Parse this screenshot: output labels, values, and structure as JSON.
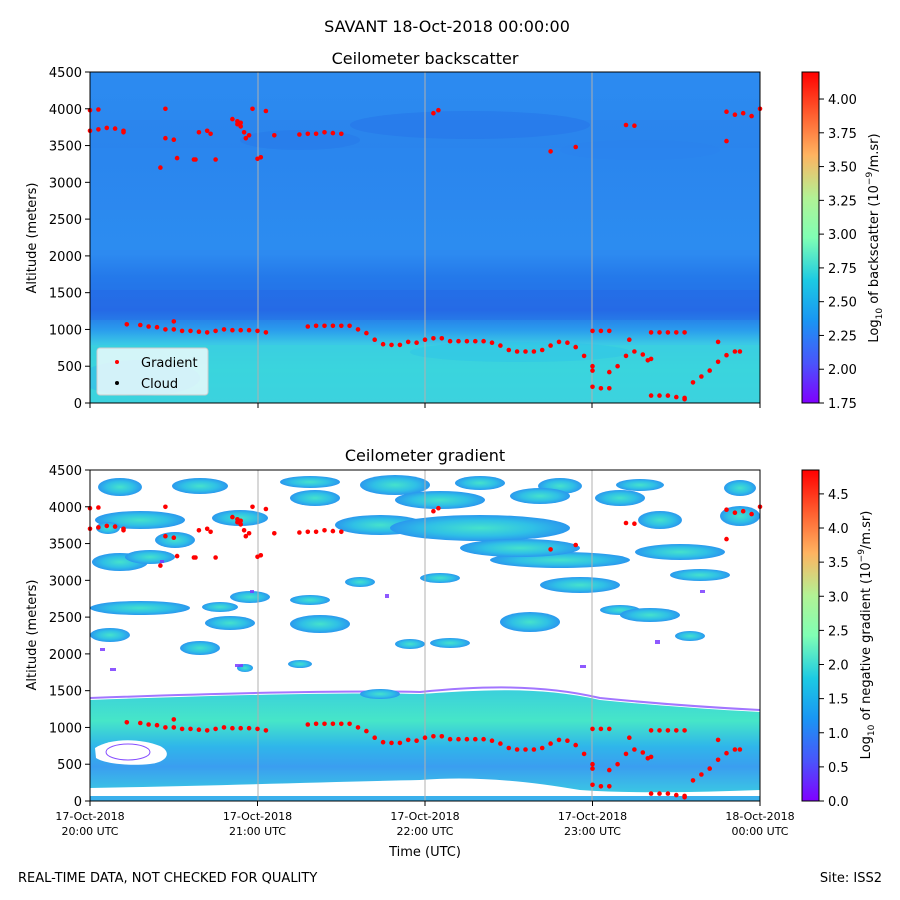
{
  "figure": {
    "suptitle": "SAVANT 18-Oct-2018 00:00:00",
    "footer_left": "REAL-TIME DATA, NOT CHECKED FOR QUALITY",
    "footer_right": "Site: ISS2"
  },
  "chart_data": [
    {
      "type": "heatmap",
      "title": "Ceilometer backscatter",
      "ylabel": "Altitude (meters)",
      "xlabel": "",
      "ylim": [
        0,
        4500
      ],
      "yticks": [
        "0",
        "500",
        "1000",
        "1500",
        "2000",
        "2500",
        "3000",
        "3500",
        "4000",
        "4500"
      ],
      "xlim_hours": [
        20,
        24
      ],
      "colorbar": {
        "label": "Log10 of backscatter (10^-9/m.sr)",
        "label_prefix": "Log",
        "label_sub": "10",
        "label_mid": " of backscatter (10",
        "label_sup": "−9",
        "label_suffix": "/m.sr)",
        "range": [
          1.75,
          4.2
        ],
        "ticks": [
          "1.75",
          "2.00",
          "2.25",
          "2.50",
          "2.75",
          "3.00",
          "3.25",
          "3.50",
          "3.75",
          "4.00"
        ]
      },
      "legend": {
        "position": "lower-left",
        "entries": [
          {
            "label": "Gradient",
            "color": "#ff0000"
          },
          {
            "label": "Cloud",
            "color": "#000000"
          }
        ]
      }
    },
    {
      "type": "heatmap",
      "title": "Ceilometer gradient",
      "ylabel": "Altitude (meters)",
      "xlabel": "Time (UTC)",
      "ylim": [
        0,
        4500
      ],
      "yticks": [
        "0",
        "500",
        "1000",
        "1500",
        "2000",
        "2500",
        "3000",
        "3500",
        "4000",
        "4500"
      ],
      "xlim_hours": [
        20,
        24
      ],
      "xticks": [
        {
          "date": "17-Oct-2018",
          "time": "20:00 UTC"
        },
        {
          "date": "17-Oct-2018",
          "time": "21:00 UTC"
        },
        {
          "date": "17-Oct-2018",
          "time": "22:00 UTC"
        },
        {
          "date": "17-Oct-2018",
          "time": "23:00 UTC"
        },
        {
          "date": "18-Oct-2018",
          "time": "00:00 UTC"
        }
      ],
      "colorbar": {
        "label": "Log10 of negative gradient (10^-9/m.sr)",
        "label_prefix": "Log",
        "label_sub": "10",
        "label_mid": " of negative gradient (10",
        "label_sup": "−9",
        "label_suffix": "/m.sr)",
        "range": [
          0,
          4.85
        ],
        "ticks": [
          "0.0",
          "0.5",
          "1.0",
          "1.5",
          "2.0",
          "2.5",
          "3.0",
          "3.5",
          "4.0",
          "4.5"
        ]
      }
    }
  ],
  "gradient_points": {
    "series_name": "Gradient",
    "color": "#ff0000",
    "points": [
      [
        20.0,
        3700
      ],
      [
        20.05,
        3720
      ],
      [
        20.1,
        3740
      ],
      [
        20.15,
        3730
      ],
      [
        20.2,
        3700
      ],
      [
        20.2,
        3680
      ],
      [
        20.0,
        3980
      ],
      [
        20.05,
        3990
      ],
      [
        20.45,
        3600
      ],
      [
        20.5,
        3580
      ],
      [
        20.42,
        3200
      ],
      [
        20.52,
        3330
      ],
      [
        20.62,
        3310
      ],
      [
        20.65,
        3680
      ],
      [
        20.7,
        3700
      ],
      [
        20.63,
        3310
      ],
      [
        20.72,
        3660
      ],
      [
        20.45,
        4000
      ],
      [
        20.75,
        3310
      ],
      [
        20.85,
        3860
      ],
      [
        20.88,
        3830
      ],
      [
        20.9,
        3810
      ],
      [
        20.88,
        3790
      ],
      [
        20.9,
        3760
      ],
      [
        20.92,
        3680
      ],
      [
        20.95,
        3640
      ],
      [
        20.93,
        3600
      ],
      [
        21.0,
        3320
      ],
      [
        21.02,
        3340
      ],
      [
        20.97,
        4000
      ],
      [
        21.05,
        3970
      ],
      [
        21.1,
        3640
      ],
      [
        21.25,
        3650
      ],
      [
        21.3,
        3660
      ],
      [
        21.35,
        3660
      ],
      [
        21.4,
        3680
      ],
      [
        21.45,
        3670
      ],
      [
        21.5,
        3660
      ],
      [
        22.05,
        3940
      ],
      [
        22.08,
        3980
      ],
      [
        22.75,
        3420
      ],
      [
        22.9,
        3480
      ],
      [
        23.2,
        3780
      ],
      [
        23.25,
        3770
      ],
      [
        23.8,
        3960
      ],
      [
        23.85,
        3920
      ],
      [
        23.9,
        3940
      ],
      [
        23.95,
        3900
      ],
      [
        24.0,
        4000
      ],
      [
        23.8,
        3560
      ],
      [
        20.22,
        1070
      ],
      [
        20.3,
        1060
      ],
      [
        20.35,
        1040
      ],
      [
        20.4,
        1030
      ],
      [
        20.45,
        1000
      ],
      [
        20.5,
        1000
      ],
      [
        20.55,
        980
      ],
      [
        20.6,
        980
      ],
      [
        20.5,
        1110
      ],
      [
        20.65,
        970
      ],
      [
        20.7,
        960
      ],
      [
        20.75,
        980
      ],
      [
        20.8,
        1000
      ],
      [
        20.85,
        990
      ],
      [
        20.9,
        990
      ],
      [
        20.95,
        990
      ],
      [
        21.0,
        980
      ],
      [
        21.05,
        960
      ],
      [
        21.3,
        1040
      ],
      [
        21.35,
        1050
      ],
      [
        21.4,
        1050
      ],
      [
        21.45,
        1050
      ],
      [
        21.5,
        1050
      ],
      [
        21.55,
        1050
      ],
      [
        21.6,
        1000
      ],
      [
        21.65,
        950
      ],
      [
        21.7,
        860
      ],
      [
        21.75,
        800
      ],
      [
        21.8,
        790
      ],
      [
        21.85,
        790
      ],
      [
        21.9,
        830
      ],
      [
        21.95,
        820
      ],
      [
        22.0,
        860
      ],
      [
        22.05,
        880
      ],
      [
        22.1,
        880
      ],
      [
        22.15,
        840
      ],
      [
        22.2,
        840
      ],
      [
        22.25,
        840
      ],
      [
        22.3,
        840
      ],
      [
        22.35,
        840
      ],
      [
        22.4,
        820
      ],
      [
        22.45,
        780
      ],
      [
        22.5,
        720
      ],
      [
        22.55,
        700
      ],
      [
        22.6,
        700
      ],
      [
        22.65,
        700
      ],
      [
        22.7,
        720
      ],
      [
        22.75,
        780
      ],
      [
        22.8,
        830
      ],
      [
        22.85,
        820
      ],
      [
        22.9,
        760
      ],
      [
        22.95,
        640
      ],
      [
        23.0,
        500
      ],
      [
        23.0,
        440
      ],
      [
        23.0,
        980
      ],
      [
        23.05,
        980
      ],
      [
        23.1,
        980
      ],
      [
        23.0,
        220
      ],
      [
        23.05,
        200
      ],
      [
        23.1,
        200
      ],
      [
        23.1,
        420
      ],
      [
        23.15,
        500
      ],
      [
        23.2,
        640
      ],
      [
        23.25,
        700
      ],
      [
        23.3,
        660
      ],
      [
        23.35,
        600
      ],
      [
        23.33,
        580
      ],
      [
        23.22,
        860
      ],
      [
        23.35,
        960
      ],
      [
        23.4,
        960
      ],
      [
        23.45,
        960
      ],
      [
        23.5,
        960
      ],
      [
        23.55,
        960
      ],
      [
        23.35,
        100
      ],
      [
        23.4,
        100
      ],
      [
        23.45,
        100
      ],
      [
        23.5,
        80
      ],
      [
        23.55,
        70
      ],
      [
        23.55,
        50
      ],
      [
        23.6,
        280
      ],
      [
        23.65,
        360
      ],
      [
        23.7,
        440
      ],
      [
        23.75,
        560
      ],
      [
        23.8,
        650
      ],
      [
        23.85,
        700
      ],
      [
        23.88,
        700
      ],
      [
        23.75,
        830
      ]
    ]
  }
}
